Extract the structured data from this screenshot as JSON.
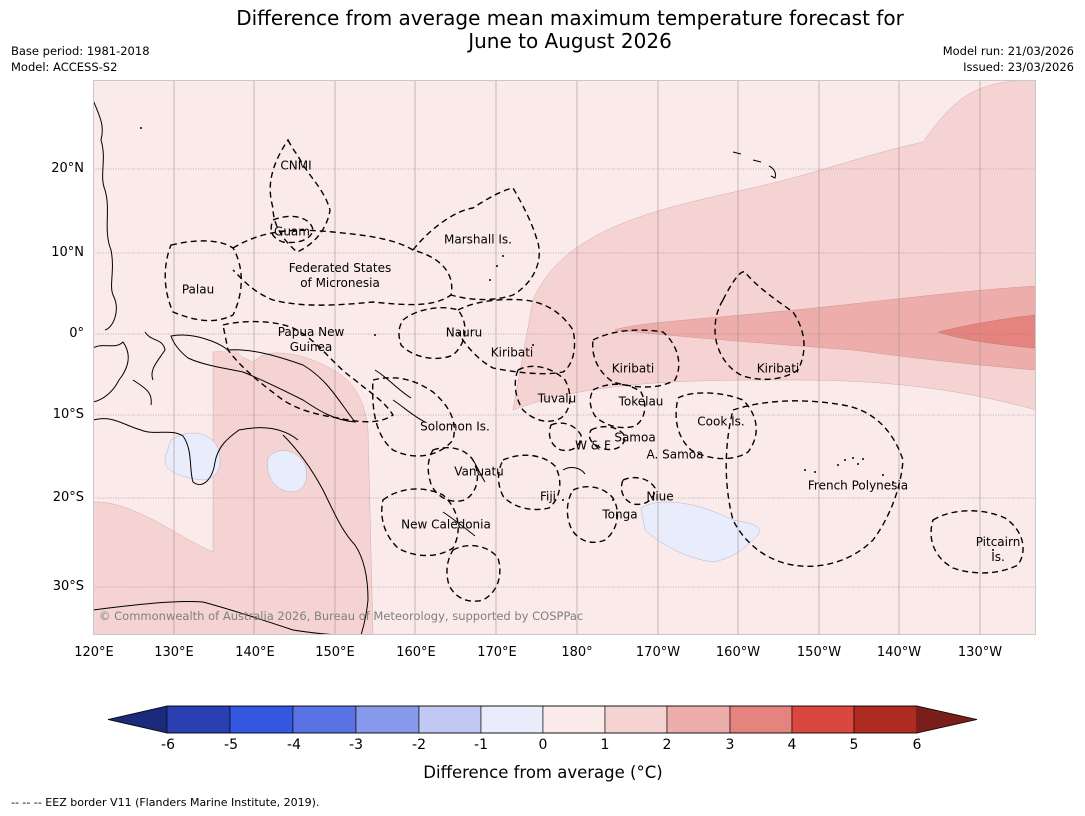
{
  "header": {
    "title_line1": "Difference from average mean maximum temperature forecast for",
    "title_line2": "June to August 2026",
    "base_period": "Base period: 1981-2018",
    "model": "Model: ACCESS-S2",
    "model_run": "Model run: 21/03/2026",
    "issued": "Issued: 23/03/2026"
  },
  "map": {
    "lat_labels": [
      "20°N",
      "10°N",
      "0°",
      "10°S",
      "20°S",
      "30°S"
    ],
    "lon_labels": [
      "120°E",
      "130°E",
      "140°E",
      "150°E",
      "160°E",
      "170°E",
      "180°",
      "170°W",
      "160°W",
      "150°W",
      "140°W",
      "130°W"
    ],
    "places": {
      "cnmi": "CNMI",
      "guam": "Guam",
      "marshall": "Marshall Is.",
      "fsm_1": "Federated States",
      "fsm_2": "of Micronesia",
      "palau": "Palau",
      "png_1": "Papua New",
      "png_2": "Guinea",
      "nauru": "Nauru",
      "kiribati_west": "Kiribati",
      "kiribati_central": "Kiribati",
      "kiribati_east": "Kiribati",
      "tuvalu": "Tuvalu",
      "tokelau": "Tokelau",
      "cook": "Cook Is.",
      "solomon": "Solomon Is.",
      "wallis": "W & F",
      "samoa": "Samoa",
      "american_samoa": "A. Samoa",
      "vanuatu": "Vanuatu",
      "fiji": "Fiji",
      "niue": "Niue",
      "french_polynesia": "French Polynesia",
      "tonga": "Tonga",
      "new_caledonia": "New Caledonia",
      "pitcairn_1": "Pitcairn",
      "pitcairn_2": "Is."
    },
    "copyright": "© Commonwealth of Australia 2026, Bureau of Meteorology, supported by COSPPac"
  },
  "legend": {
    "ticks": [
      "-6",
      "-5",
      "-4",
      "-3",
      "-2",
      "-1",
      "0",
      "1",
      "2",
      "3",
      "4",
      "5",
      "6"
    ],
    "colors": [
      "#1b2a7a",
      "#2a3fb2",
      "#3556e0",
      "#5a73e4",
      "#8799ea",
      "#c0c8f3",
      "#e8ecfb",
      "#fbeaea",
      "#f5d3d3",
      "#edadaa",
      "#e5847e",
      "#d9473e",
      "#ae2b24",
      "#7a1e1a"
    ],
    "label": "Difference from average (°C)"
  },
  "footnote": "-- -- -- EEZ border V11 (Flanders Marine Institute, 2019)."
}
